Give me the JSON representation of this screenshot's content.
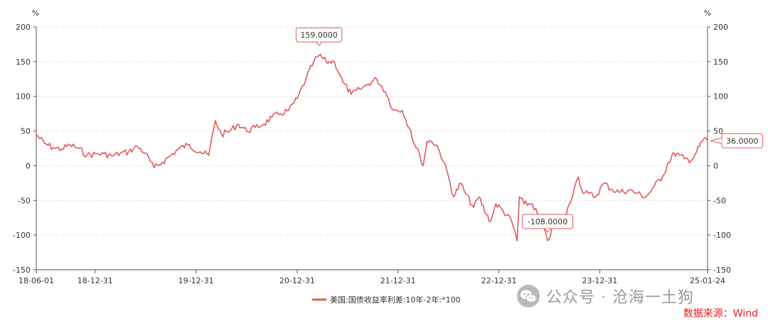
{
  "chart_data": {
    "type": "line",
    "unit_left": "%",
    "unit_right": "%",
    "x_tick_labels": [
      "18-06-01",
      "18-12-31",
      "19-12-31",
      "20-12-31",
      "21-12-31",
      "22-12-31",
      "23-12-31",
      "25-01-24"
    ],
    "y_ticks": [
      200,
      150,
      100,
      50,
      0,
      -50,
      -100,
      -150
    ],
    "ylim": [
      -150,
      200
    ],
    "xlim": [
      "2018-06-01",
      "2025-01-24"
    ],
    "grid": "horizontal-dashed",
    "series": [
      {
        "name": "美国:国债收益率利差:10年-2年:*100",
        "color": "#e05a5a",
        "points": [
          [
            "2018-06-01",
            45
          ],
          [
            "2018-07-01",
            32
          ],
          [
            "2018-08-01",
            26
          ],
          [
            "2018-09-01",
            24
          ],
          [
            "2018-10-01",
            30
          ],
          [
            "2018-11-01",
            25
          ],
          [
            "2018-12-01",
            15
          ],
          [
            "2019-01-01",
            17
          ],
          [
            "2019-02-01",
            17
          ],
          [
            "2019-03-01",
            14
          ],
          [
            "2019-04-01",
            18
          ],
          [
            "2019-05-01",
            20
          ],
          [
            "2019-06-01",
            28
          ],
          [
            "2019-07-01",
            18
          ],
          [
            "2019-08-01",
            -3
          ],
          [
            "2019-09-01",
            5
          ],
          [
            "2019-10-01",
            15
          ],
          [
            "2019-11-01",
            25
          ],
          [
            "2019-12-01",
            30
          ],
          [
            "2020-01-15",
            20
          ],
          [
            "2020-02-15",
            15
          ],
          [
            "2020-03-10",
            65
          ],
          [
            "2020-04-01",
            45
          ],
          [
            "2020-05-01",
            50
          ],
          [
            "2020-06-01",
            60
          ],
          [
            "2020-07-01",
            50
          ],
          [
            "2020-08-01",
            55
          ],
          [
            "2020-09-01",
            60
          ],
          [
            "2020-10-01",
            70
          ],
          [
            "2020-11-01",
            75
          ],
          [
            "2020-12-01",
            80
          ],
          [
            "2021-01-01",
            97
          ],
          [
            "2021-02-01",
            125
          ],
          [
            "2021-03-01",
            150
          ],
          [
            "2021-03-20",
            159
          ],
          [
            "2021-04-15",
            150
          ],
          [
            "2021-05-15",
            150
          ],
          [
            "2021-06-15",
            120
          ],
          [
            "2021-07-15",
            103
          ],
          [
            "2021-08-15",
            110
          ],
          [
            "2021-09-15",
            118
          ],
          [
            "2021-10-15",
            125
          ],
          [
            "2021-11-15",
            107
          ],
          [
            "2021-12-15",
            80
          ],
          [
            "2022-01-15",
            80
          ],
          [
            "2022-02-15",
            50
          ],
          [
            "2022-03-01",
            30
          ],
          [
            "2022-03-20",
            15
          ],
          [
            "2022-04-01",
            0
          ],
          [
            "2022-04-15",
            35
          ],
          [
            "2022-05-01",
            35
          ],
          [
            "2022-05-20",
            30
          ],
          [
            "2022-06-15",
            5
          ],
          [
            "2022-07-01",
            -15
          ],
          [
            "2022-07-20",
            -45
          ],
          [
            "2022-08-15",
            -25
          ],
          [
            "2022-09-01",
            -40
          ],
          [
            "2022-10-01",
            -60
          ],
          [
            "2022-10-20",
            -45
          ],
          [
            "2022-11-15",
            -70
          ],
          [
            "2022-12-01",
            -80
          ],
          [
            "2022-12-20",
            -55
          ],
          [
            "2023-01-15",
            -65
          ],
          [
            "2023-02-15",
            -80
          ],
          [
            "2023-03-07",
            -108
          ],
          [
            "2023-03-15",
            -45
          ],
          [
            "2023-04-01",
            -55
          ],
          [
            "2023-05-01",
            -55
          ],
          [
            "2023-06-01",
            -80
          ],
          [
            "2023-06-25",
            -108
          ],
          [
            "2023-07-15",
            -90
          ],
          [
            "2023-08-01",
            -75
          ],
          [
            "2023-09-01",
            -70
          ],
          [
            "2023-10-01",
            -30
          ],
          [
            "2023-10-15",
            -16
          ],
          [
            "2023-11-01",
            -40
          ],
          [
            "2023-11-20",
            -40
          ],
          [
            "2023-12-15",
            -45
          ],
          [
            "2024-01-15",
            -25
          ],
          [
            "2024-02-15",
            -35
          ],
          [
            "2024-03-15",
            -38
          ],
          [
            "2024-04-15",
            -35
          ],
          [
            "2024-05-15",
            -40
          ],
          [
            "2024-06-15",
            -45
          ],
          [
            "2024-07-15",
            -30
          ],
          [
            "2024-08-15",
            -15
          ],
          [
            "2024-09-05",
            5
          ],
          [
            "2024-09-25",
            18
          ],
          [
            "2024-10-15",
            15
          ],
          [
            "2024-11-01",
            10
          ],
          [
            "2024-11-25",
            8
          ],
          [
            "2024-12-15",
            20
          ],
          [
            "2025-01-05",
            35
          ],
          [
            "2025-01-13",
            40
          ],
          [
            "2025-01-24",
            36
          ]
        ]
      }
    ],
    "annotations": [
      {
        "label": "159.0000",
        "date": "2021-03-20",
        "value": 159
      },
      {
        "label": "-108.0000",
        "date": "2023-06-25",
        "value": -108
      },
      {
        "label": "36.0000",
        "date": "2025-01-24",
        "value": 36
      }
    ]
  },
  "watermark": {
    "text": "公众号 · 沧海一土狗"
  },
  "source_note": "数据来源：Wind"
}
